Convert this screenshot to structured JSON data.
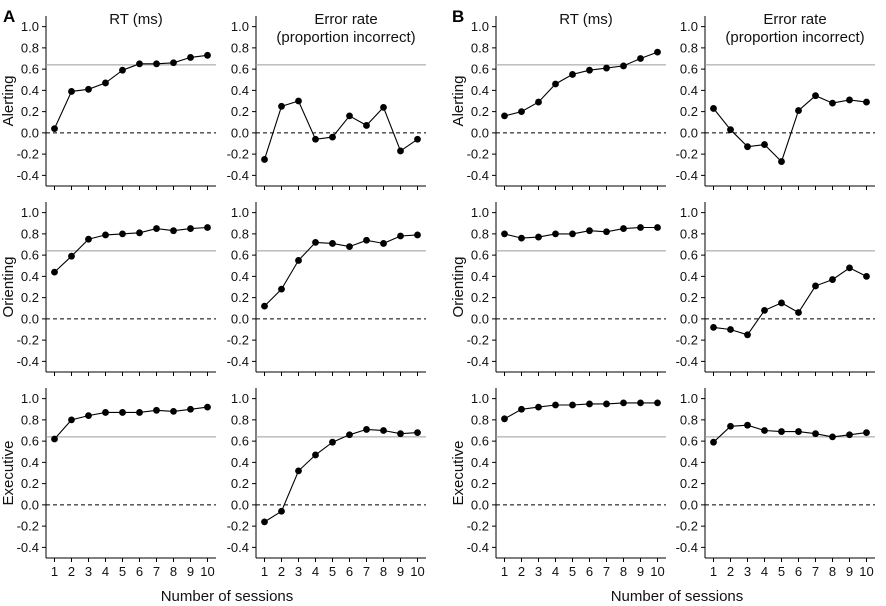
{
  "figure": {
    "panel_letters": [
      "A",
      "B"
    ],
    "column_titles": [
      "RT (ms)",
      "Error rate\n(proportion incorrect)"
    ],
    "row_labels": [
      "Alerting",
      "Orienting",
      "Executive"
    ],
    "xlabel": "Number of sessions",
    "x_ticks": [
      1,
      2,
      3,
      4,
      5,
      6,
      7,
      8,
      9,
      10
    ],
    "y_ticks": [
      1.0,
      0.8,
      0.6,
      0.4,
      0.2,
      0.0,
      -0.2,
      -0.4
    ],
    "ylim": [
      -0.5,
      1.1
    ],
    "reference_line": 0.64,
    "zero_line": 0.0
  },
  "chart_data": [
    {
      "type": "line",
      "panel": "A",
      "row": "Alerting",
      "column": "RT (ms)",
      "x": [
        1,
        2,
        3,
        4,
        5,
        6,
        7,
        8,
        9,
        10
      ],
      "values": [
        0.04,
        0.39,
        0.41,
        0.47,
        0.59,
        0.65,
        0.65,
        0.66,
        0.71,
        0.73
      ]
    },
    {
      "type": "line",
      "panel": "A",
      "row": "Alerting",
      "column": "Error rate (proportion incorrect)",
      "x": [
        1,
        2,
        3,
        4,
        5,
        6,
        7,
        8,
        9,
        10
      ],
      "values": [
        -0.25,
        0.25,
        0.3,
        -0.06,
        -0.04,
        0.16,
        0.07,
        0.24,
        -0.17,
        -0.06
      ]
    },
    {
      "type": "line",
      "panel": "A",
      "row": "Orienting",
      "column": "RT (ms)",
      "x": [
        1,
        2,
        3,
        4,
        5,
        6,
        7,
        8,
        9,
        10
      ],
      "values": [
        0.44,
        0.59,
        0.75,
        0.79,
        0.8,
        0.81,
        0.85,
        0.83,
        0.85,
        0.86
      ]
    },
    {
      "type": "line",
      "panel": "A",
      "row": "Orienting",
      "column": "Error rate (proportion incorrect)",
      "x": [
        1,
        2,
        3,
        4,
        5,
        6,
        7,
        8,
        9,
        10
      ],
      "values": [
        0.12,
        0.28,
        0.55,
        0.72,
        0.71,
        0.68,
        0.74,
        0.71,
        0.78,
        0.79
      ]
    },
    {
      "type": "line",
      "panel": "A",
      "row": "Executive",
      "column": "RT (ms)",
      "x": [
        1,
        2,
        3,
        4,
        5,
        6,
        7,
        8,
        9,
        10
      ],
      "values": [
        0.62,
        0.8,
        0.84,
        0.87,
        0.87,
        0.87,
        0.89,
        0.88,
        0.9,
        0.92
      ]
    },
    {
      "type": "line",
      "panel": "A",
      "row": "Executive",
      "column": "Error rate (proportion incorrect)",
      "x": [
        1,
        2,
        3,
        4,
        5,
        6,
        7,
        8,
        9,
        10
      ],
      "values": [
        -0.16,
        -0.06,
        0.32,
        0.47,
        0.59,
        0.66,
        0.71,
        0.7,
        0.67,
        0.68
      ]
    },
    {
      "type": "line",
      "panel": "B",
      "row": "Alerting",
      "column": "RT (ms)",
      "x": [
        1,
        2,
        3,
        4,
        5,
        6,
        7,
        8,
        9,
        10
      ],
      "values": [
        0.16,
        0.2,
        0.29,
        0.46,
        0.55,
        0.59,
        0.61,
        0.63,
        0.7,
        0.76
      ]
    },
    {
      "type": "line",
      "panel": "B",
      "row": "Alerting",
      "column": "Error rate (proportion incorrect)",
      "x": [
        1,
        2,
        3,
        4,
        5,
        6,
        7,
        8,
        9,
        10
      ],
      "values": [
        0.23,
        0.03,
        -0.13,
        -0.11,
        -0.27,
        0.21,
        0.35,
        0.28,
        0.31,
        0.29
      ]
    },
    {
      "type": "line",
      "panel": "B",
      "row": "Orienting",
      "column": "RT (ms)",
      "x": [
        1,
        2,
        3,
        4,
        5,
        6,
        7,
        8,
        9,
        10
      ],
      "values": [
        0.8,
        0.76,
        0.77,
        0.8,
        0.8,
        0.83,
        0.82,
        0.85,
        0.86,
        0.86
      ]
    },
    {
      "type": "line",
      "panel": "B",
      "row": "Orienting",
      "column": "Error rate (proportion incorrect)",
      "x": [
        1,
        2,
        3,
        4,
        5,
        6,
        7,
        8,
        9,
        10
      ],
      "values": [
        -0.08,
        -0.1,
        -0.15,
        0.08,
        0.15,
        0.06,
        0.31,
        0.37,
        0.48,
        0.4
      ]
    },
    {
      "type": "line",
      "panel": "B",
      "row": "Executive",
      "column": "RT (ms)",
      "x": [
        1,
        2,
        3,
        4,
        5,
        6,
        7,
        8,
        9,
        10
      ],
      "values": [
        0.81,
        0.9,
        0.92,
        0.94,
        0.94,
        0.95,
        0.95,
        0.96,
        0.96,
        0.96
      ]
    },
    {
      "type": "line",
      "panel": "B",
      "row": "Executive",
      "column": "Error rate (proportion incorrect)",
      "x": [
        1,
        2,
        3,
        4,
        5,
        6,
        7,
        8,
        9,
        10
      ],
      "values": [
        0.59,
        0.74,
        0.75,
        0.7,
        0.69,
        0.69,
        0.67,
        0.64,
        0.66,
        0.68
      ]
    }
  ]
}
